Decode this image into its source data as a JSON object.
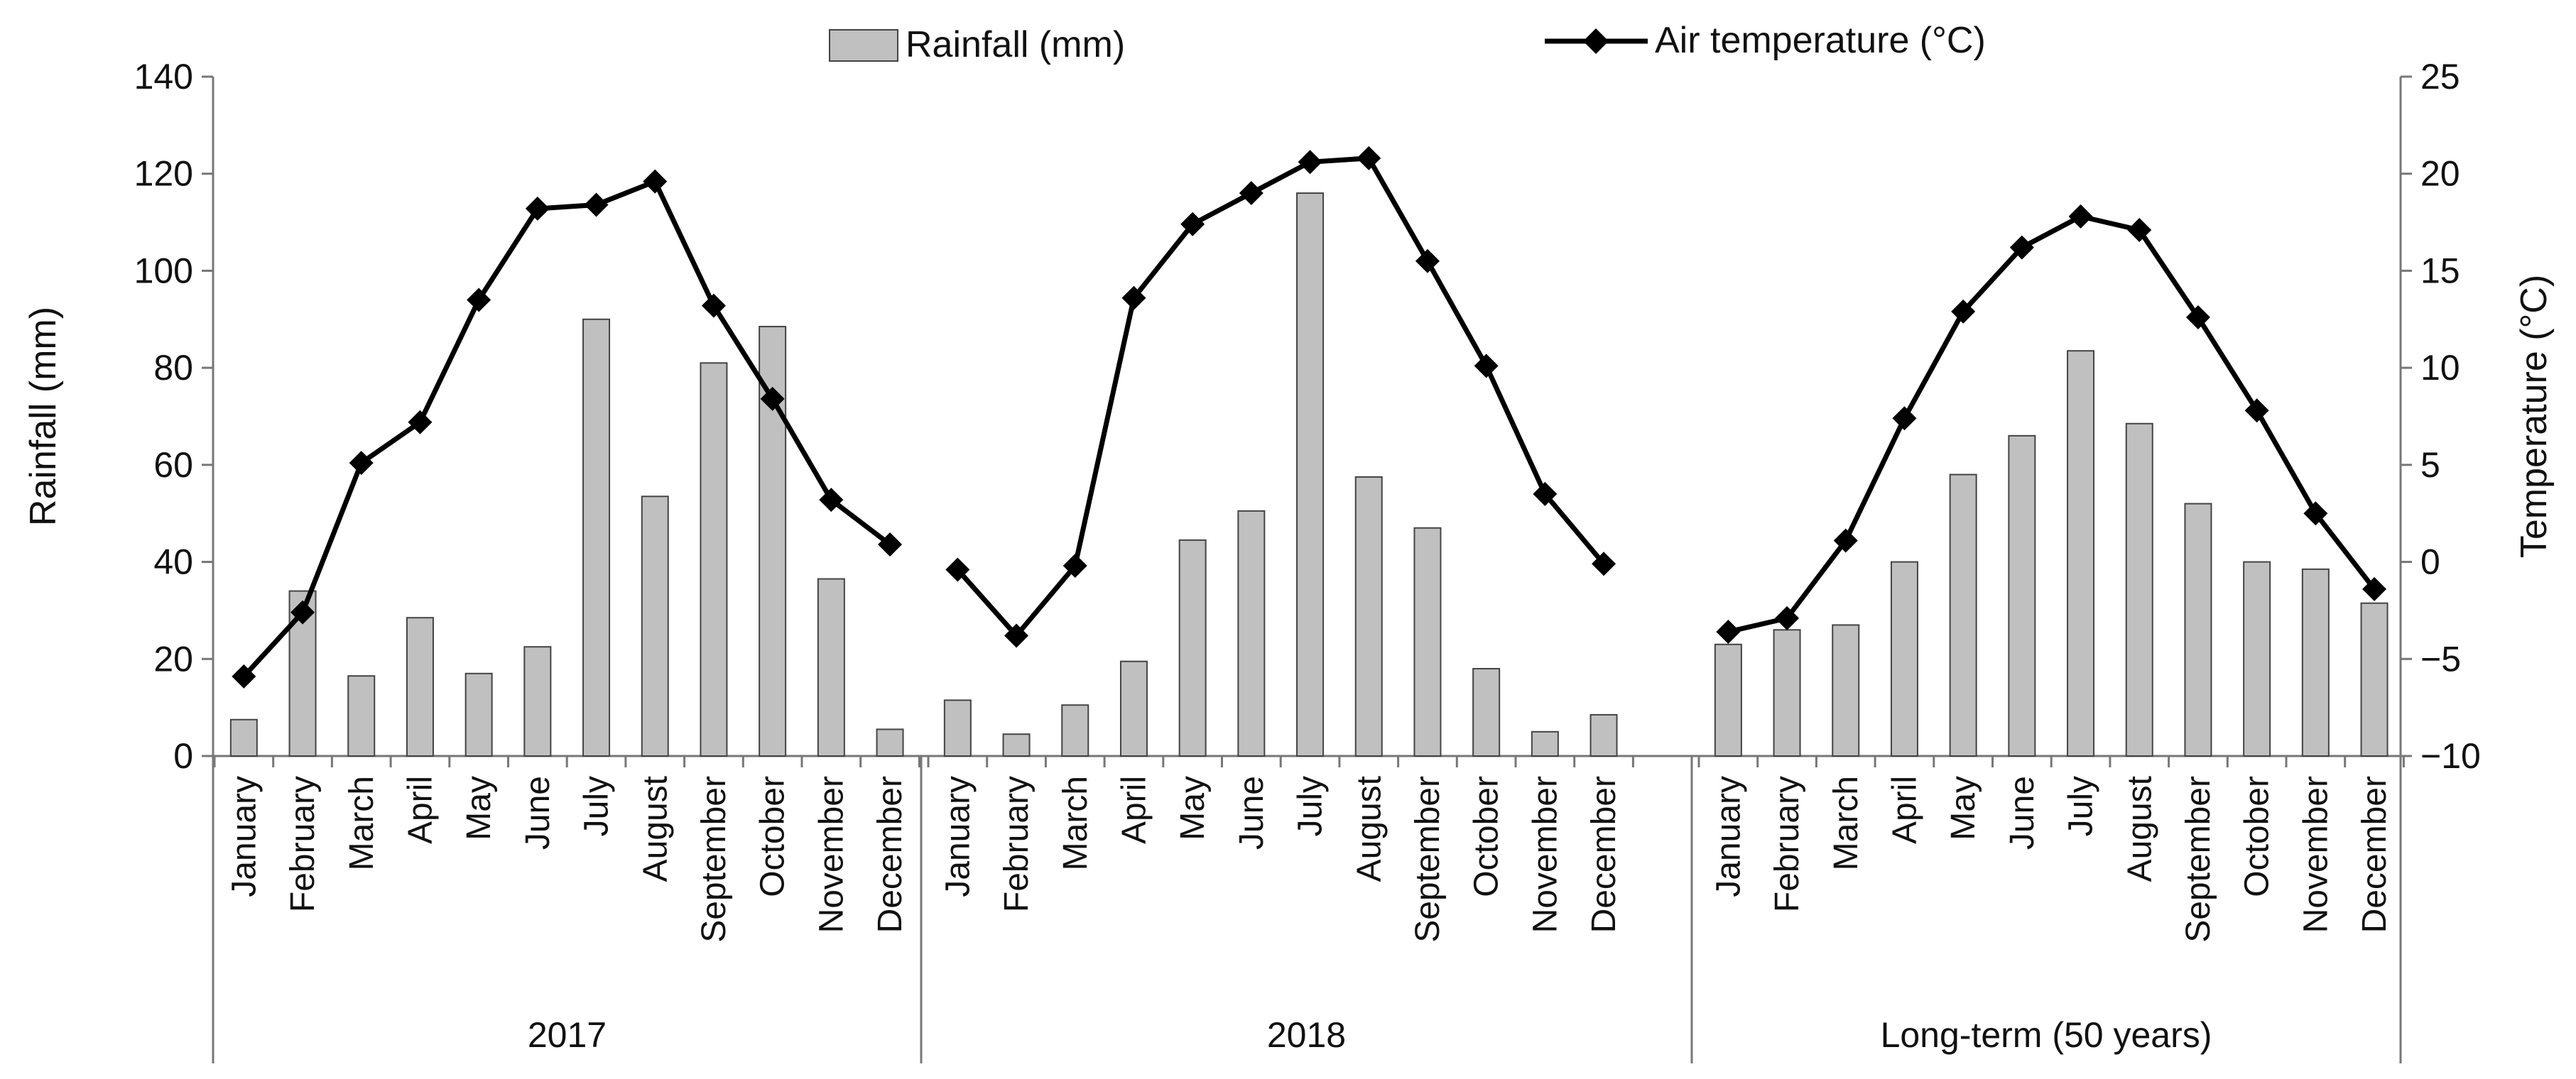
{
  "chart_data": {
    "type": "bar+line",
    "groups": [
      "2017",
      "2018",
      "Long-term (50 years)"
    ],
    "months": [
      "January",
      "February",
      "March",
      "April",
      "May",
      "June",
      "July",
      "August",
      "September",
      "October",
      "November",
      "December"
    ],
    "series": [
      {
        "name": "Rainfall (mm)",
        "kind": "bar",
        "axis": "left",
        "values": [
          [
            7.5,
            34,
            16.5,
            28.5,
            17,
            22.5,
            90,
            53.5,
            81,
            88.5,
            36.5,
            5.5
          ],
          [
            11.5,
            4.5,
            10.5,
            19.5,
            44.5,
            50.5,
            116,
            57.5,
            47,
            18,
            5,
            8.5
          ],
          [
            23,
            26,
            27,
            40,
            58,
            66,
            83.5,
            68.5,
            52,
            40,
            38.5,
            31.5
          ]
        ]
      },
      {
        "name": "Air temperature (°C)",
        "kind": "line",
        "axis": "right",
        "values": [
          [
            -5.9,
            -2.6,
            5.1,
            7.2,
            13.5,
            18.2,
            18.4,
            19.6,
            13.2,
            8.4,
            3.2,
            0.9
          ],
          [
            -0.4,
            -3.8,
            -0.2,
            13.6,
            17.4,
            19.0,
            20.6,
            20.8,
            15.5,
            10.1,
            3.5,
            -0.1
          ],
          [
            -3.6,
            -2.9,
            1.1,
            7.4,
            12.9,
            16.2,
            17.8,
            17.1,
            12.6,
            7.8,
            2.5,
            -1.4
          ]
        ]
      }
    ],
    "ylabel_left": "Rainfall (mm)",
    "ylabel_right": "Temperature (°C)",
    "ylim_left": [
      0,
      140
    ],
    "ylim_right": [
      -10,
      25
    ],
    "yticks_left": [
      "0",
      "20",
      "40",
      "60",
      "80",
      "100",
      "120",
      "140"
    ],
    "yticks_right": [
      "−10",
      "−5",
      "0",
      "5",
      "10",
      "15",
      "20",
      "25"
    ],
    "grid": false,
    "legend": {
      "position": "top-center",
      "bar_label": "Rainfall (mm)",
      "line_label": "Air temperature (°C)"
    },
    "colors": {
      "bar_fill": "#c0c0c0",
      "bar_stroke": "#444444",
      "line": "#000000",
      "axis": "#777777"
    }
  }
}
